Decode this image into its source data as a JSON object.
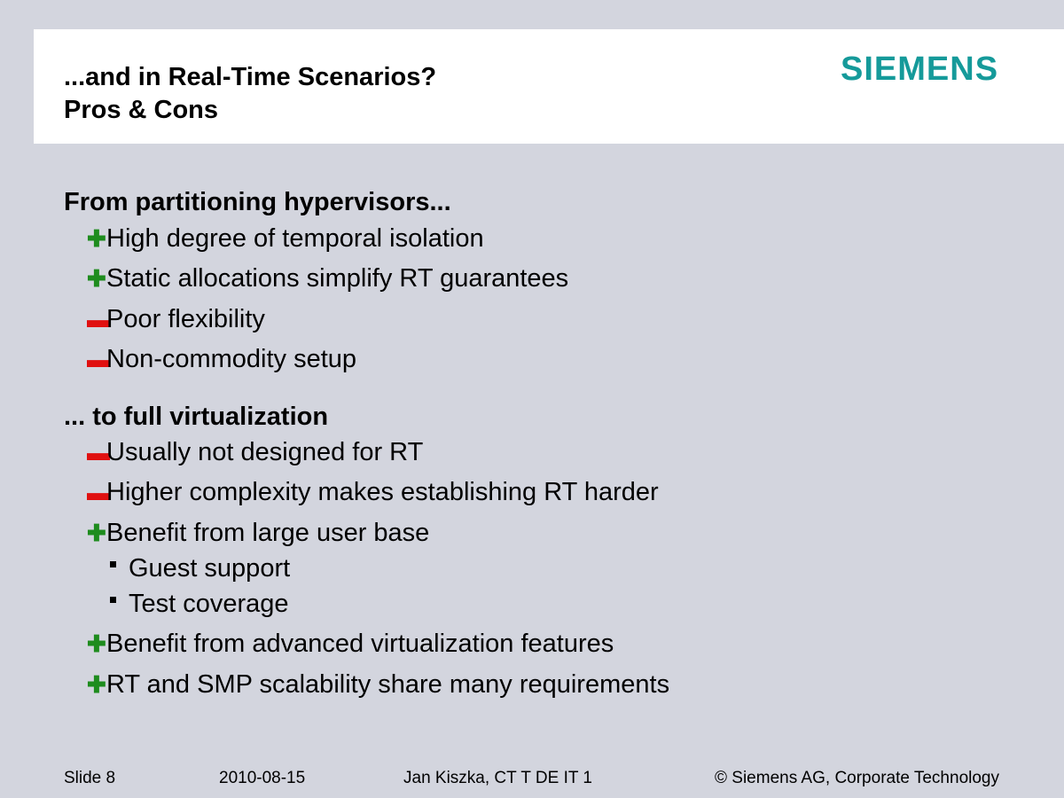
{
  "header": {
    "title_line1": "...and in Real-Time Scenarios?",
    "title_line2": "Pros & Cons",
    "logo": "SIEMENS",
    "logo_color": "#159a9a"
  },
  "sections": [
    {
      "heading": "From partitioning hypervisors...",
      "items": [
        {
          "type": "plus",
          "text": "High degree of temporal isolation"
        },
        {
          "type": "plus",
          "text": "Static allocations simplify RT guarantees"
        },
        {
          "type": "minus",
          "text": "Poor flexibility"
        },
        {
          "type": "minus",
          "text": "Non-commodity setup"
        }
      ]
    },
    {
      "heading": "... to full virtualization",
      "items": [
        {
          "type": "minus",
          "text": "Usually not designed for RT"
        },
        {
          "type": "minus",
          "text": "Higher complexity makes establishing RT harder"
        },
        {
          "type": "plus",
          "text": "Benefit from large user base",
          "subitems": [
            "Guest support",
            "Test coverage"
          ]
        },
        {
          "type": "plus",
          "text": "Benefit from advanced virtualization features"
        },
        {
          "type": "plus",
          "text": "RT and SMP scalability share many requirements"
        }
      ]
    }
  ],
  "marks": {
    "plus": "✚",
    "minus": "▬",
    "plus_color": "#1e8c1e",
    "minus_color": "#e01010"
  },
  "footer": {
    "slide": "Slide 8",
    "date": "2010-08-15",
    "author": "Jan Kiszka, CT T DE IT 1",
    "copyright": "© Siemens AG, Corporate Technology"
  }
}
